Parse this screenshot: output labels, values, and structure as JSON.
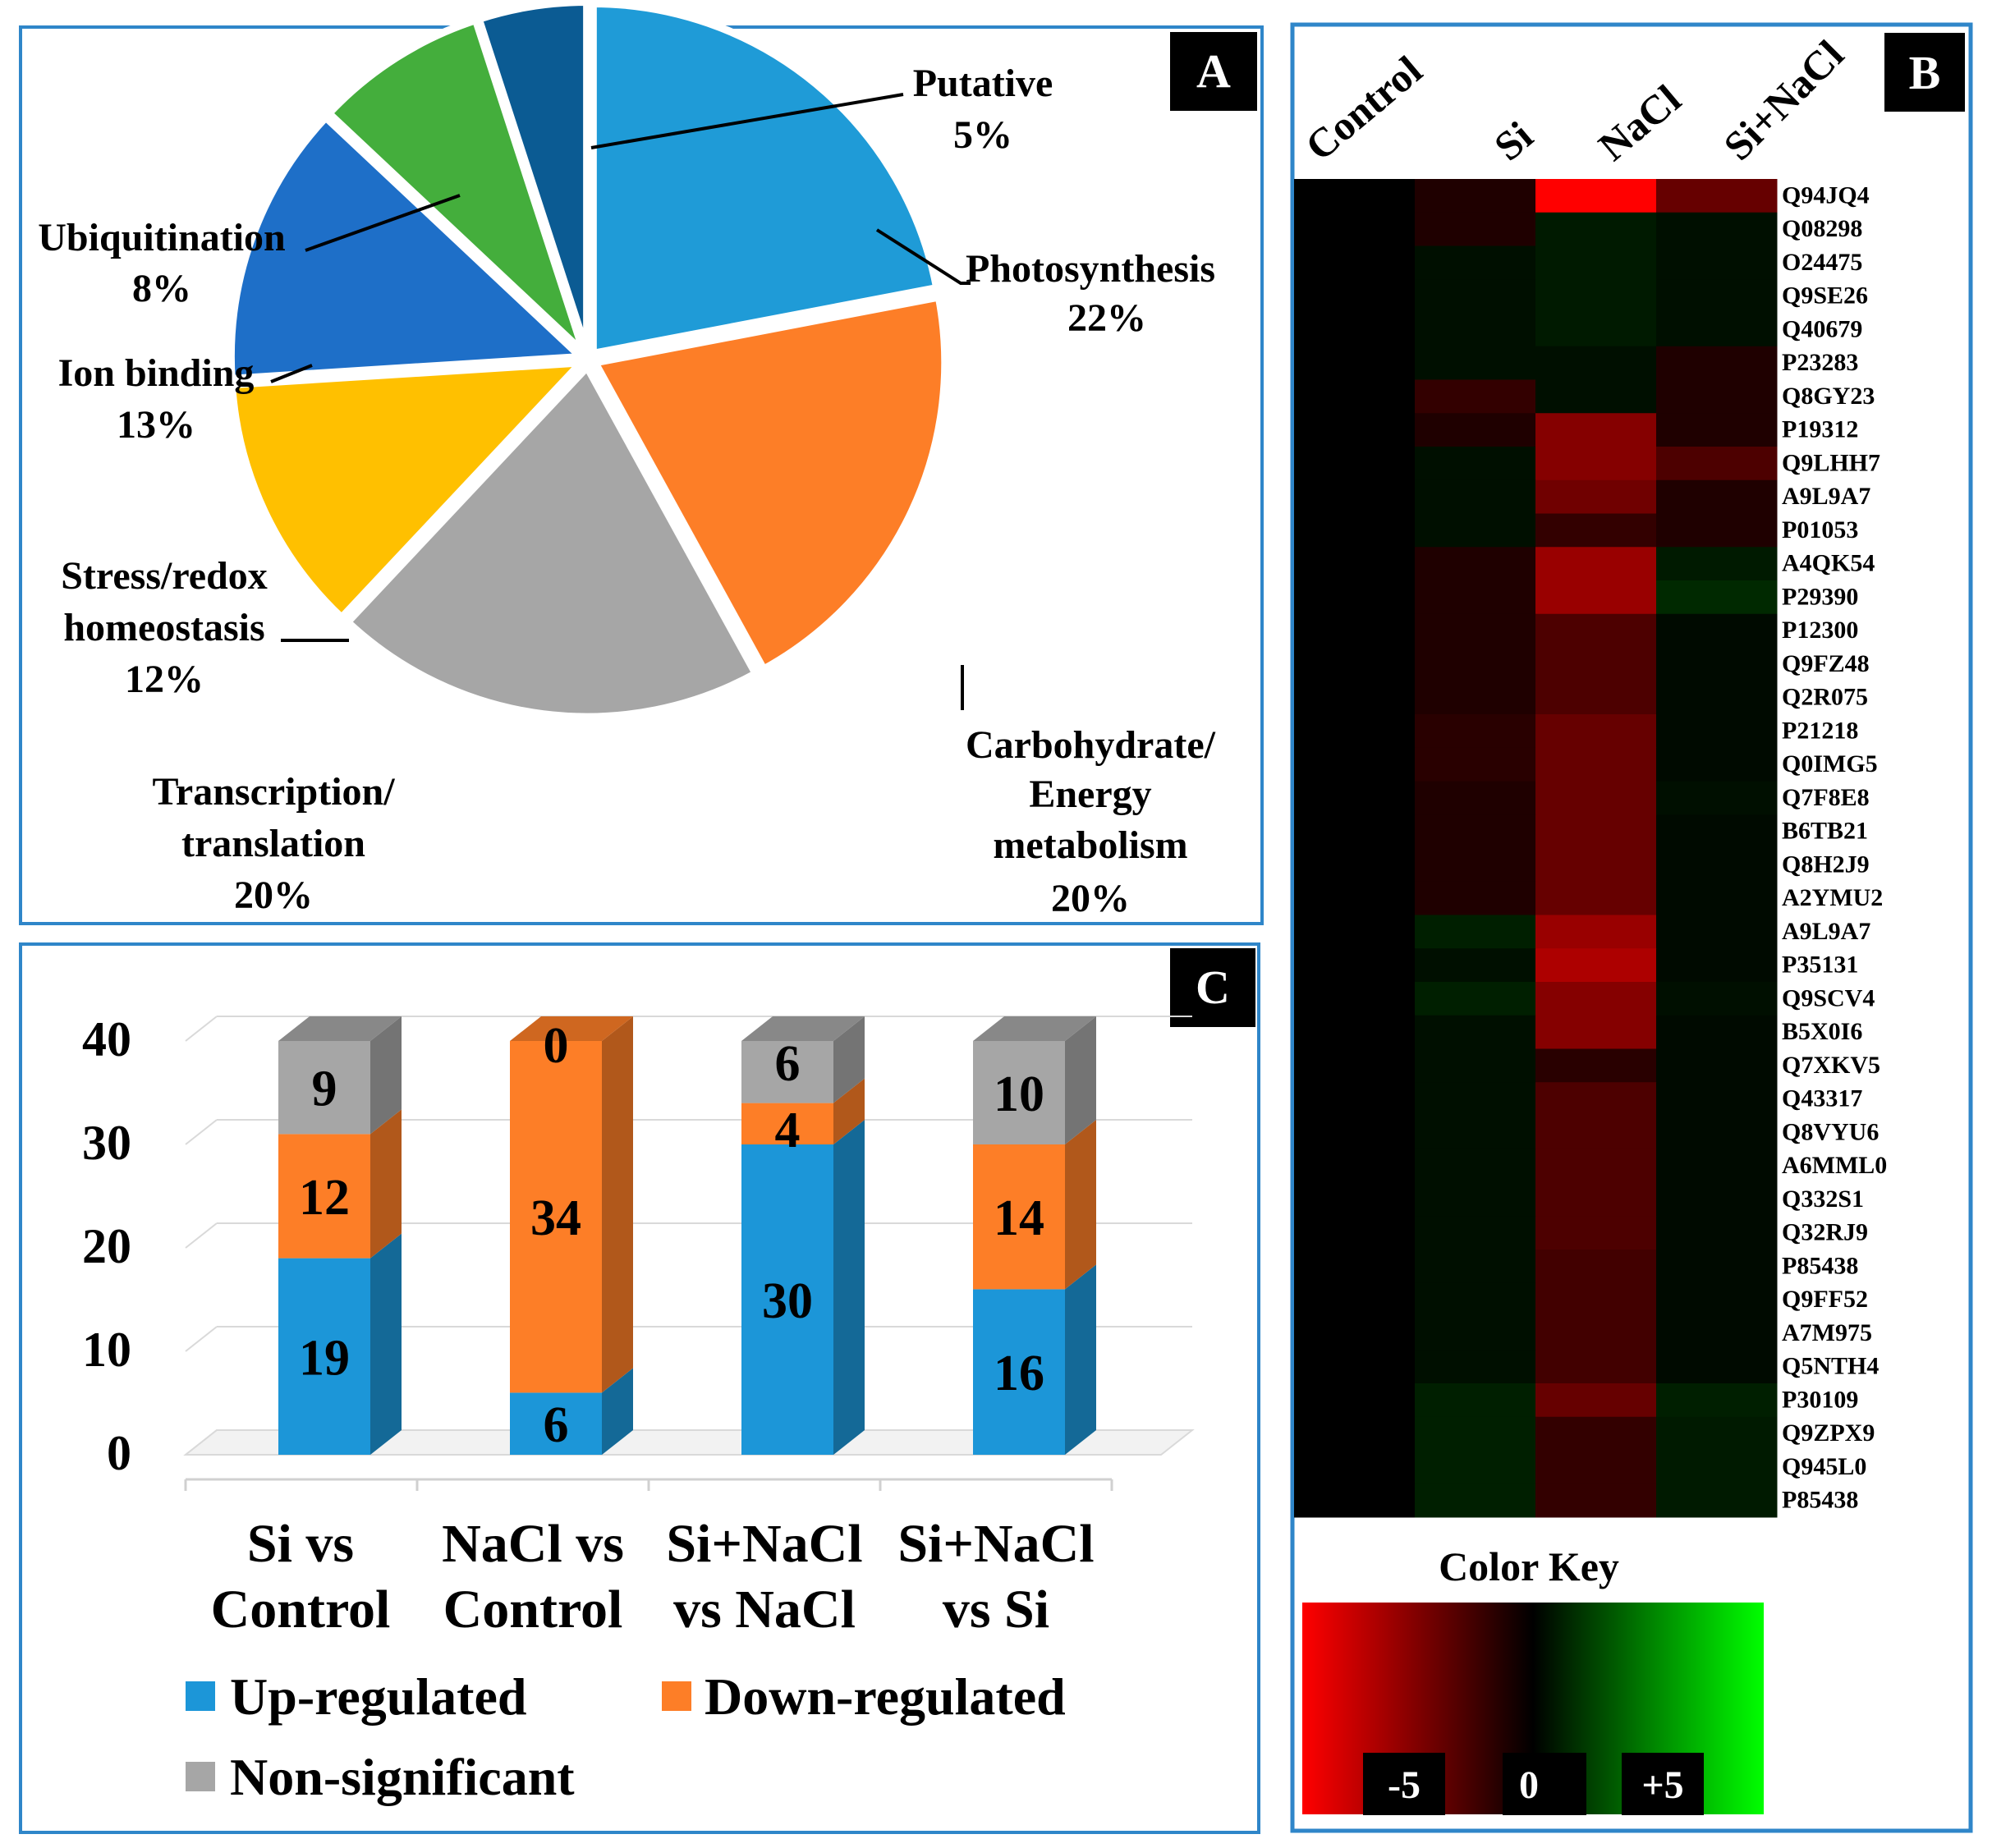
{
  "panels": {
    "a": {
      "letter": "A"
    },
    "b": {
      "letter": "B"
    },
    "c": {
      "letter": "C"
    }
  },
  "chart_data": [
    {
      "type": "pie",
      "panel": "A",
      "slices": [
        {
          "name": "Photosynthesis",
          "value": 22,
          "pct_label": "22%",
          "color": "#1f9bd7"
        },
        {
          "name": "Carbohydrate/ Energy metabolism",
          "value": 20,
          "pct_label": "20%",
          "color": "#fd7e27"
        },
        {
          "name": "Transcription/ translation",
          "value": 20,
          "pct_label": "20%",
          "color": "#a6a6a6"
        },
        {
          "name": "Stress/redox homeostasis",
          "value": 12,
          "pct_label": "12%",
          "color": "#ffc000"
        },
        {
          "name": "Ion binding",
          "value": 13,
          "pct_label": "13%",
          "color": "#1e6fc8"
        },
        {
          "name": "Ubiquitination",
          "value": 8,
          "pct_label": "8%",
          "color": "#44ae3c"
        },
        {
          "name": "Putative",
          "value": 5,
          "pct_label": "5%",
          "color": "#0b5b93"
        }
      ],
      "labels": {
        "photosynthesis": [
          "Photosynthesis",
          "22%"
        ],
        "carbohydrate": [
          "Carbohydrate/",
          "Energy",
          "metabolism",
          "20%"
        ],
        "transcription": [
          "Transcription/",
          "translation",
          "20%"
        ],
        "stress": [
          "Stress/redox",
          "homeostasis",
          "12%"
        ],
        "ion": [
          "Ion binding",
          "13%"
        ],
        "ubiquitination": [
          "Ubiquitination",
          "8%"
        ],
        "putative": [
          "Putative",
          "5%"
        ]
      }
    },
    {
      "type": "heatmap",
      "panel": "B",
      "columns": [
        "Control",
        "Si",
        "NaCl",
        "Si+NaCl"
      ],
      "rows": [
        "Q94JQ4",
        "Q08298",
        "O24475",
        "Q9SE26",
        "Q40679",
        "P23283",
        "Q8GY23",
        "P19312",
        "Q9LHH7",
        "A9L9A7",
        "P01053",
        "A4QK54",
        "P29390",
        "P12300",
        "Q9FZ48",
        "Q2R075",
        "P21218",
        "Q0IMG5",
        "Q7F8E8",
        "B6TB21",
        "Q8H2J9",
        "A2YMU2",
        "A9L9A7",
        "P35131",
        "Q9SCV4",
        "B5X0I6",
        "Q7XKV5",
        "Q43317",
        "Q8VYU6",
        "A6MML0",
        "Q332S1",
        "Q32RJ9",
        "P85438",
        "Q9FF52",
        "A7M975",
        "Q5NTH4",
        "P30109",
        "Q9ZPX9",
        "Q945L0",
        "P85438"
      ],
      "values": [
        [
          0,
          -0.6,
          -5,
          -2
        ],
        [
          0,
          -0.6,
          0.5,
          0.3
        ],
        [
          0,
          0.3,
          0.5,
          0.3
        ],
        [
          0,
          0.3,
          0.5,
          0.3
        ],
        [
          0,
          0.3,
          0.5,
          0.3
        ],
        [
          0,
          0.3,
          0.3,
          -0.6
        ],
        [
          0,
          -1,
          0.3,
          -0.6
        ],
        [
          0,
          -0.6,
          -2.6,
          -0.6
        ],
        [
          0,
          0.3,
          -2.6,
          -1.5
        ],
        [
          0,
          0.3,
          -2.2,
          -0.6
        ],
        [
          0,
          0.3,
          -1,
          -0.6
        ],
        [
          0,
          -0.6,
          -3,
          0.5
        ],
        [
          0,
          -0.6,
          -3,
          0.8
        ],
        [
          0,
          -0.6,
          -1.5,
          0.2
        ],
        [
          0,
          -0.6,
          -1.5,
          0.2
        ],
        [
          0,
          -0.6,
          -1.5,
          0.2
        ],
        [
          0,
          -0.8,
          -2,
          0.2
        ],
        [
          0,
          -0.8,
          -2,
          0.2
        ],
        [
          0,
          -0.6,
          -2,
          0.3
        ],
        [
          0,
          -0.6,
          -2,
          0.2
        ],
        [
          0,
          -0.6,
          -2,
          0.2
        ],
        [
          0,
          -0.6,
          -2,
          0.2
        ],
        [
          0,
          0.6,
          -3,
          0.2
        ],
        [
          0,
          0.3,
          -3.4,
          0.2
        ],
        [
          0,
          0.6,
          -2.6,
          0.3
        ],
        [
          0,
          0.3,
          -2.6,
          0.2
        ],
        [
          0,
          0.3,
          -0.8,
          0.2
        ],
        [
          0,
          0.3,
          -1.5,
          0.2
        ],
        [
          0,
          0.3,
          -1.5,
          0.2
        ],
        [
          0,
          0.3,
          -1.5,
          0.2
        ],
        [
          0,
          0.3,
          -1.5,
          0.2
        ],
        [
          0,
          0.3,
          -1.5,
          0.2
        ],
        [
          0,
          0.3,
          -1.3,
          0.2
        ],
        [
          0,
          0.3,
          -1.3,
          0.2
        ],
        [
          0,
          0.3,
          -1.3,
          0.2
        ],
        [
          0,
          0.3,
          -1.3,
          0.2
        ],
        [
          0,
          0.6,
          -2,
          0.6
        ],
        [
          0,
          0.6,
          -1,
          0.5
        ],
        [
          0,
          0.6,
          -1,
          0.5
        ],
        [
          0,
          0.6,
          -1,
          0.5
        ]
      ],
      "color_key": {
        "title": "Color Key",
        "min_label": "-5",
        "mid_label": "0",
        "max_label": "+5",
        "low_color": "#ff0000",
        "mid_color": "#000000",
        "high_color": "#00ff00"
      }
    },
    {
      "type": "bar",
      "panel": "C",
      "stacked": true,
      "categories": [
        [
          "Si vs",
          "Control"
        ],
        [
          "NaCl vs",
          "Control"
        ],
        [
          "Si+NaCl",
          "vs NaCl"
        ],
        [
          "Si+NaCl",
          "vs Si"
        ]
      ],
      "series": [
        {
          "name": "Up-regulated",
          "values": [
            19,
            6,
            30,
            16
          ],
          "color": "#1c96d8"
        },
        {
          "name": "Down-regulated",
          "values": [
            12,
            34,
            4,
            14
          ],
          "color": "#fd7e27"
        },
        {
          "name": "Non-significant",
          "values": [
            9,
            0,
            6,
            10
          ],
          "color": "#a6a6a6"
        }
      ],
      "bar_labels": [
        [
          "19",
          "12",
          "9"
        ],
        [
          "6",
          "34",
          "0"
        ],
        [
          "30",
          "4",
          "6"
        ],
        [
          "16",
          "14",
          "10"
        ]
      ],
      "yticks": [
        "0",
        "10",
        "20",
        "30",
        "40"
      ],
      "ylim": [
        0,
        40
      ]
    }
  ]
}
